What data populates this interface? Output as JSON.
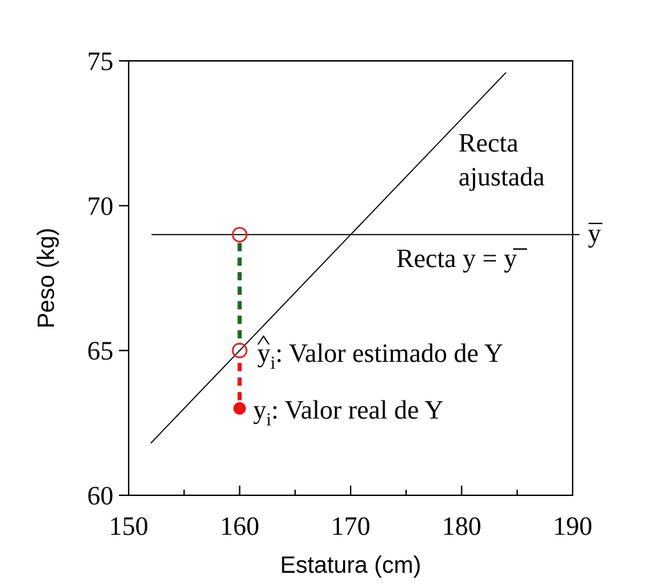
{
  "chart_data": {
    "type": "scatter",
    "xlabel": "Estatura (cm)",
    "ylabel": "Peso (kg)",
    "xlim": [
      150,
      190
    ],
    "ylim": [
      60,
      75
    ],
    "x_ticks": [
      "150",
      "160",
      "170",
      "180",
      "190"
    ],
    "y_ticks": [
      "60",
      "65",
      "70",
      "75"
    ],
    "x_minor_tick_values": [
      155,
      165,
      175,
      185
    ],
    "y_minor_tick_values": [],
    "grid": false,
    "fitted_line": {
      "x": [
        152,
        184
      ],
      "y": [
        61.8,
        74.6
      ],
      "label_line1": "Recta",
      "label_line2": "ajustada"
    },
    "mean_line": {
      "y": 69,
      "x_from": 151,
      "x_to": 190,
      "label_prefix": "Recta y = ",
      "label_symbol": "y",
      "edge_label": "y"
    },
    "points": {
      "real": {
        "x": 160,
        "y": 63,
        "symbol": "y",
        "subscript": "i",
        "label": ": Valor real de Y",
        "color": "#ee1111"
      },
      "estimated": {
        "x": 160,
        "y": 65,
        "symbol": "y",
        "subscript": "i",
        "label": ": Valor estimado de Y",
        "color": "#dd2222"
      },
      "mean": {
        "x": 160,
        "y": 69,
        "color": "#dd2222"
      }
    },
    "segments": {
      "explained": {
        "x": 160,
        "y_from": 65,
        "y_to": 69,
        "color": "#1a6b1a",
        "style": "dashed"
      },
      "residual": {
        "x": 160,
        "y_from": 63,
        "y_to": 65,
        "color": "#ee1111",
        "style": "dashed"
      }
    }
  }
}
